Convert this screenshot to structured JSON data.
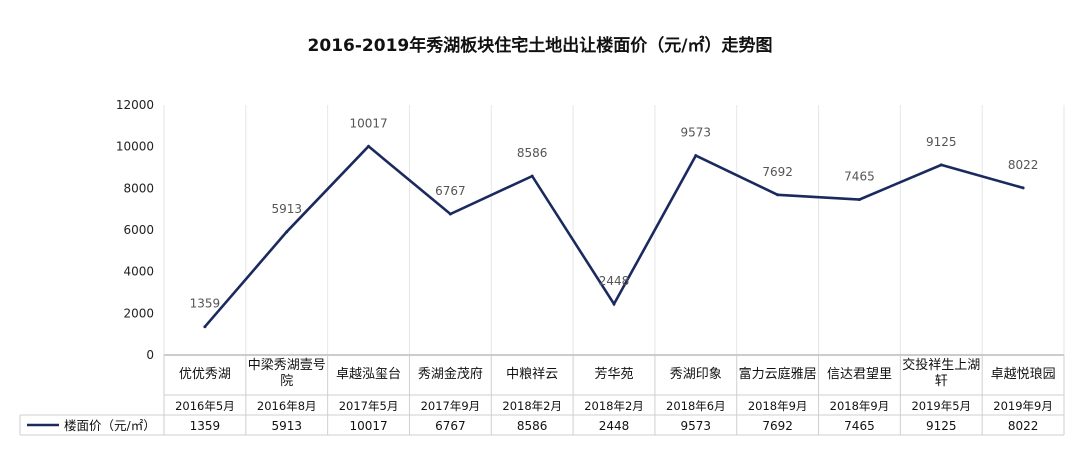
{
  "chart_data": {
    "type": "line",
    "title": "2016-2019年秀湖板块住宅土地出让楼面价（元/㎡）走势图",
    "categories": [
      "优优秀湖",
      "中梁秀湖壹号院",
      "卓越泓玺台",
      "秀湖金茂府",
      "中粮祥云",
      "芳华苑",
      "秀湖印象",
      "富力云庭雅居",
      "信达君望里",
      "交投祥生上湖轩",
      "卓越悦琅园"
    ],
    "category_lines": [
      [
        "优优秀湖"
      ],
      [
        "中梁秀湖壹号",
        "院"
      ],
      [
        "卓越泓玺台"
      ],
      [
        "秀湖金茂府"
      ],
      [
        "中粮祥云"
      ],
      [
        "芳华苑"
      ],
      [
        "秀湖印象"
      ],
      [
        "富力云庭雅居"
      ],
      [
        "信达君望里"
      ],
      [
        "交投祥生上湖",
        "轩"
      ],
      [
        "卓越悦琅园"
      ]
    ],
    "dates": [
      "2016年5月",
      "2016年8月",
      "2017年5月",
      "2017年9月",
      "2018年2月",
      "2018年2月",
      "2018年6月",
      "2018年9月",
      "2018年9月",
      "2019年5月",
      "2019年9月"
    ],
    "series": [
      {
        "name": "楼面价（元/㎡）",
        "values": [
          1359,
          5913,
          10017,
          6767,
          8586,
          2448,
          9573,
          7692,
          7465,
          9125,
          8022
        ],
        "color": "#1b2a5e"
      }
    ],
    "ylim": [
      0,
      12000
    ],
    "yticks": [
      "0",
      "2000",
      "4000",
      "6000",
      "8000",
      "10000",
      "12000"
    ],
    "xlabel": "",
    "ylabel": "",
    "grid": "vertical-light",
    "legend": "data-table-row"
  }
}
